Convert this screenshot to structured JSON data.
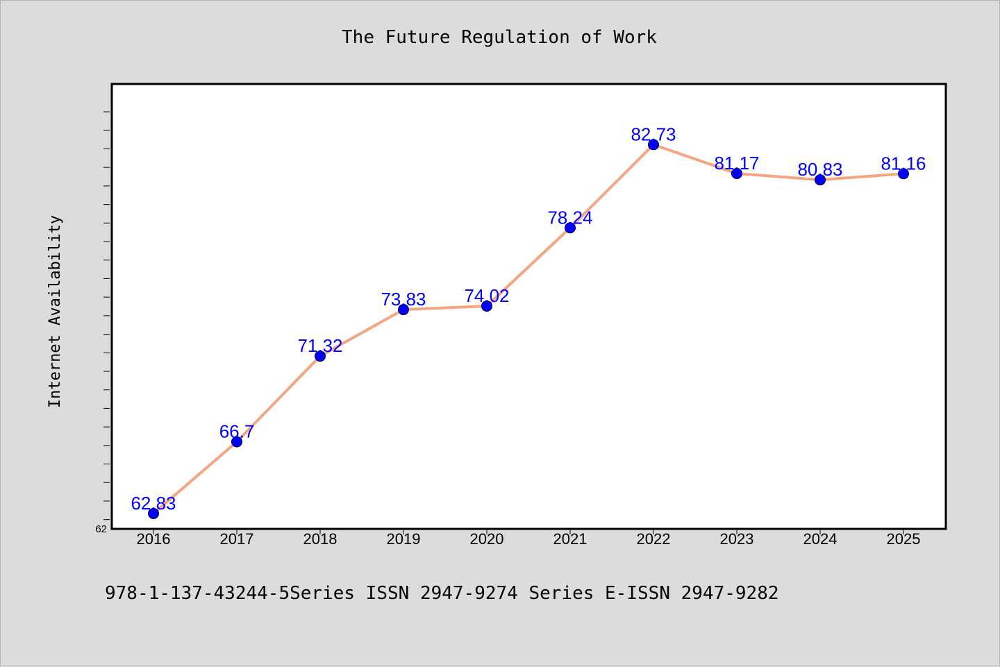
{
  "chart_data": {
    "type": "line",
    "title": "The Future Regulation of Work",
    "ylabel": "Internet Availability",
    "xlabel": "",
    "categories": [
      "2016",
      "2017",
      "2018",
      "2019",
      "2020",
      "2021",
      "2022",
      "2023",
      "2024",
      "2025"
    ],
    "series": [
      {
        "values": [
          62.83,
          66.7,
          71.32,
          73.83,
          74.02,
          78.24,
          82.73,
          81.17,
          80.83,
          81.16
        ]
      }
    ],
    "data_labels": [
      "62.83",
      "66.7",
      "71.32",
      "73.83",
      "74.02",
      "78.24",
      "82.73",
      "81.17",
      "80.83",
      "81.16"
    ],
    "ylim": [
      62,
      86
    ],
    "y_tick_labels": [
      "62"
    ],
    "grid": false,
    "legend": "none",
    "line_color": "#f4a582",
    "marker_color": "#0000ff",
    "label_color": "#0000ff",
    "plot_background": "#ffffff",
    "figure_background": "#dcdcdc"
  },
  "footer": {
    "text": "978-1-137-43244-5Series ISSN 2947-9274 Series E-ISSN 2947-9282"
  }
}
